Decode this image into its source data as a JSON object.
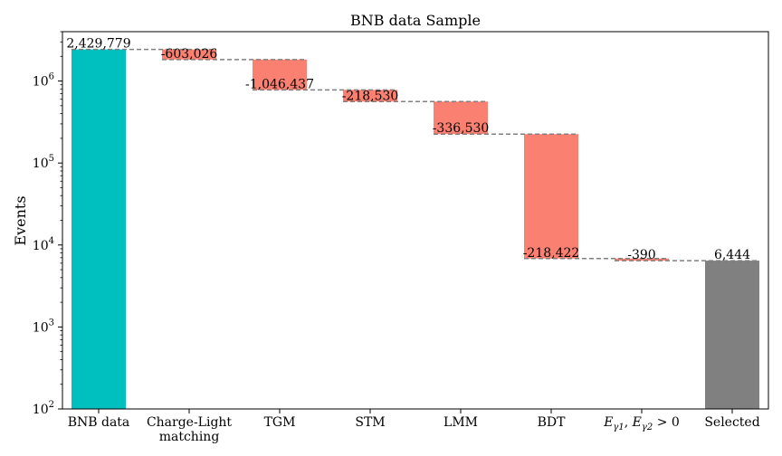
{
  "chart_data": {
    "type": "bar",
    "subtype": "waterfall",
    "title": "BNB data Sample",
    "xlabel": "",
    "ylabel": "Events",
    "yscale": "log",
    "ylim": [
      100,
      4000000
    ],
    "grid": false,
    "categories": [
      "BNB data",
      "Charge-Light matching",
      "TGM",
      "STM",
      "LMM",
      "BDT",
      "E_{γ1}, E_{γ2} > 0",
      "Selected"
    ],
    "values": [
      2429779,
      -603026,
      -1046437,
      -218530,
      -336530,
      -218422,
      -390,
      6444
    ],
    "data_labels": [
      "2,429,779",
      "-603,026",
      "-1,046,437",
      "-218,530",
      "-336,530",
      "-218,422",
      "-390",
      "6,444"
    ],
    "yticks": [
      {
        "value": 100,
        "label": "10^2"
      },
      {
        "value": 1000,
        "label": "10^3"
      },
      {
        "value": 10000,
        "label": "10^4"
      },
      {
        "value": 100000,
        "label": "10^5"
      },
      {
        "value": 1000000,
        "label": "10^6"
      }
    ],
    "colors": {
      "start": "#00bfbf",
      "decrease": "#fa8072",
      "end": "#808080",
      "connector": "#808080"
    }
  }
}
